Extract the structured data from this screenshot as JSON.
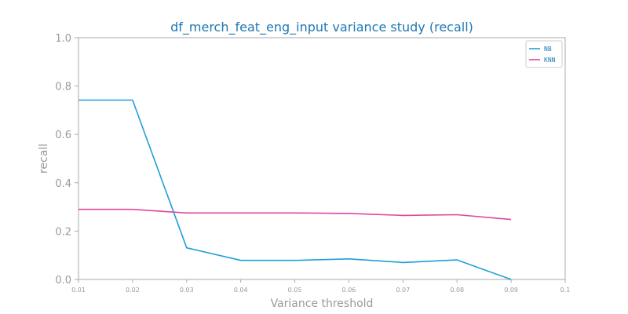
{
  "chart_data": {
    "type": "line",
    "title": "df_merch_feat_eng_input variance study (recall)",
    "xlabel": "Variance threshold",
    "ylabel": "recall",
    "x": [
      0.01,
      0.02,
      0.03,
      0.04,
      0.05,
      0.06,
      0.07,
      0.08,
      0.09
    ],
    "xlim": [
      0.01,
      0.1
    ],
    "ylim": [
      0.0,
      1.0
    ],
    "xticks": [
      "0.01",
      "0.02",
      "0.03",
      "0.04",
      "0.05",
      "0.06",
      "0.07",
      "0.08",
      "0.09",
      "0.1"
    ],
    "yticks": [
      "0.0",
      "0.2",
      "0.4",
      "0.6",
      "0.8",
      "1.0"
    ],
    "grid": false,
    "legend_position": "top-right",
    "series": [
      {
        "name": "NB",
        "color": "#1f9fd8",
        "values": [
          0.742,
          0.742,
          0.131,
          0.079,
          0.079,
          0.085,
          0.07,
          0.081,
          0.0
        ]
      },
      {
        "name": "KNN",
        "color": "#e0469e",
        "values": [
          0.29,
          0.29,
          0.275,
          0.275,
          0.275,
          0.273,
          0.265,
          0.268,
          0.248
        ]
      }
    ],
    "colors": {
      "title": "#1d77b3",
      "axis_text": "#999999",
      "axis_line": "#aaaaaa"
    }
  }
}
